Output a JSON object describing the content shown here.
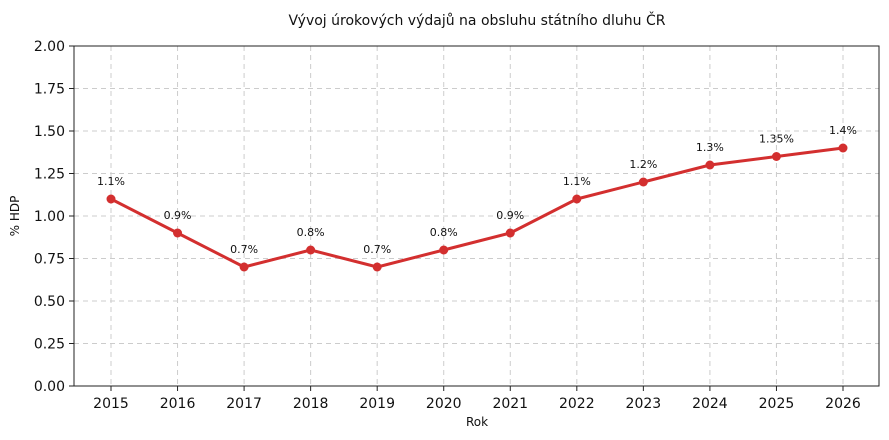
{
  "chart_data": {
    "type": "line",
    "title": "Vývoj úrokových výdajů na obsluhu státního dluhu ČR",
    "xlabel": "Rok",
    "ylabel": "% HDP",
    "x": [
      "2015",
      "2016",
      "2017",
      "2018",
      "2019",
      "2020",
      "2021",
      "2022",
      "2023",
      "2024",
      "2025",
      "2026"
    ],
    "series": [
      {
        "values": [
          1.1,
          0.9,
          0.7,
          0.8,
          0.7,
          0.8,
          0.9,
          1.1,
          1.2,
          1.3,
          1.35,
          1.4
        ],
        "labels": [
          "1.1%",
          "0.9%",
          "0.7%",
          "0.8%",
          "0.7%",
          "0.8%",
          "0.9%",
          "1.1%",
          "1.2%",
          "1.3%",
          "1.35%",
          "1.4%"
        ],
        "color": "#d32f2f"
      }
    ],
    "ylim": [
      0,
      2.0
    ],
    "yticks": [
      "0.00",
      "0.25",
      "0.50",
      "0.75",
      "1.00",
      "1.25",
      "1.50",
      "1.75",
      "2.00"
    ],
    "grid": true
  }
}
